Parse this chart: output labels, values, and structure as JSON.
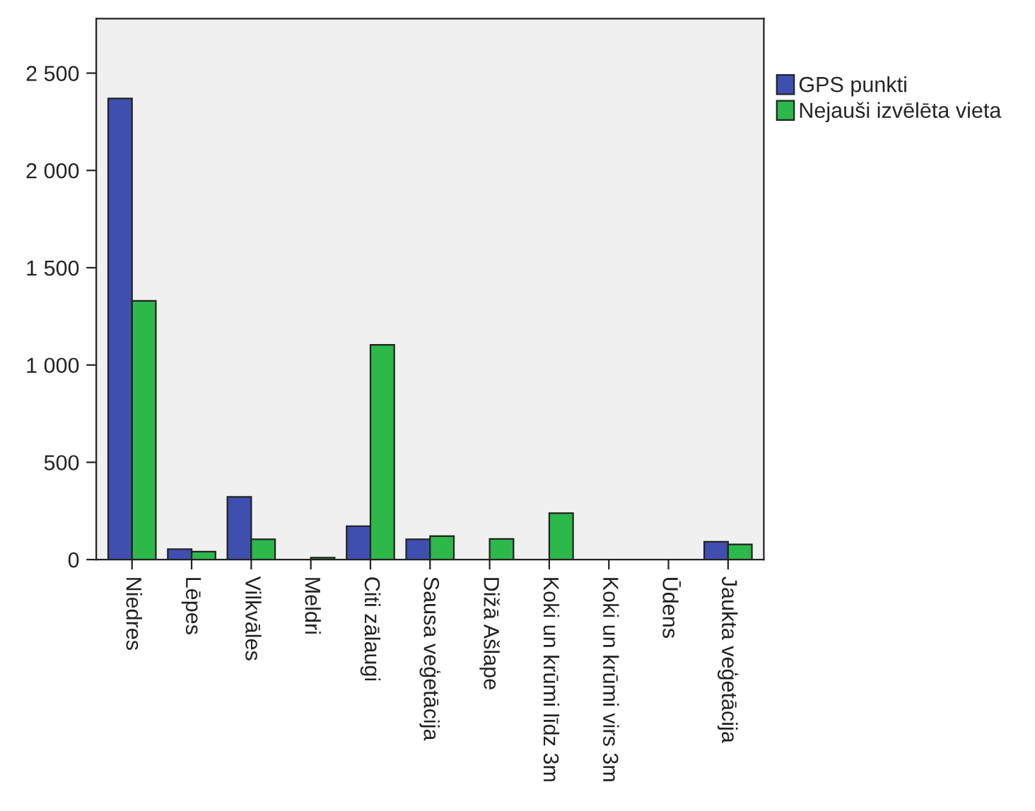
{
  "chart_data": {
    "type": "bar",
    "categories": [
      "Niedres",
      "Lēpes",
      "Vilkvāles",
      "Meldri",
      "Citi zālaugi",
      "Sausa veģetācija",
      "Dižā Ašlape",
      "Koki un krūmi līdz 3m",
      "Koki un krūmi virs 3m",
      "Ūdens",
      "Jaukta veģetācija"
    ],
    "series": [
      {
        "name": "GPS punkti",
        "color": "#3f4fb0",
        "values": [
          2370,
          54,
          322,
          null,
          172,
          104,
          null,
          null,
          null,
          null,
          92
        ]
      },
      {
        "name": "Nejauši izvēlēta vieta",
        "color": "#2db84a",
        "values": [
          1330,
          41,
          104,
          10,
          1104,
          121,
          106,
          239,
          null,
          null,
          78
        ]
      }
    ],
    "ylim": [
      0,
      2780
    ],
    "yticks": [
      0,
      500,
      {
        "value": 1000,
        "label": "1 000"
      },
      {
        "value": 1500,
        "label": "1 500"
      },
      {
        "value": 2000,
        "label": "2 000"
      },
      {
        "value": 2500,
        "label": "2 500"
      }
    ],
    "grid": false,
    "legend": "top right"
  }
}
